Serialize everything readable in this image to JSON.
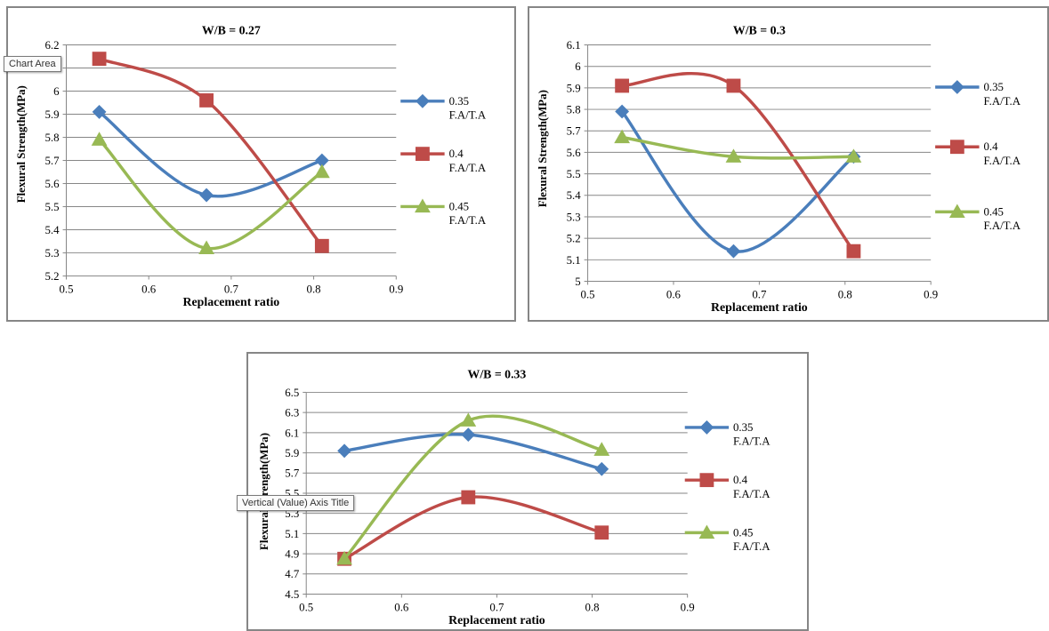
{
  "tooltips": {
    "chart_area": "Chart Area",
    "vertical_axis_title": "Vertical (Value) Axis Title"
  },
  "colors": {
    "series_035": "#4a7ebb",
    "series_04": "#be4b48",
    "series_045": "#98b954",
    "gridline": "#868686",
    "border": "#868686"
  },
  "chart_data": [
    {
      "type": "line",
      "title": "W/B = 0.27",
      "xlabel": "Replacement ratio",
      "ylabel": "Flexural Strength(MPa)",
      "xlim": [
        0.5,
        0.9
      ],
      "xticks": [
        0.5,
        0.6,
        0.7,
        0.8,
        0.9
      ],
      "ylim": [
        5.2,
        6.2
      ],
      "yticks": [
        5.2,
        5.3,
        5.4,
        5.5,
        5.6,
        5.7,
        5.8,
        5.9,
        6,
        6.1,
        6.2
      ],
      "ytick_labels": [
        "5.2",
        "5.3",
        "5.4",
        "5.5",
        "5.6",
        "5.7",
        "5.8",
        "5.9",
        "6",
        "6.1",
        "6.2"
      ],
      "grid": true,
      "legend": "right",
      "x": [
        0.54,
        0.67,
        0.81
      ],
      "series": [
        {
          "name": "0.35 F.A/T.A",
          "label_lines": [
            "0.35",
            "F.A/T.A"
          ],
          "marker": "diamond",
          "color": "#4a7ebb",
          "values": [
            5.91,
            5.55,
            5.7
          ]
        },
        {
          "name": "0.4 F.A/T.A",
          "label_lines": [
            "0.4",
            "F.A/T.A"
          ],
          "marker": "square",
          "color": "#be4b48",
          "values": [
            6.14,
            5.96,
            5.33
          ]
        },
        {
          "name": "0.45 F.A/T.A",
          "label_lines": [
            "0.45",
            "F.A/T.A"
          ],
          "marker": "triangle",
          "color": "#98b954",
          "values": [
            5.79,
            5.32,
            5.65
          ]
        }
      ]
    },
    {
      "type": "line",
      "title": "W/B = 0.3",
      "xlabel": "Replacement ratio",
      "ylabel": "Flexural Strength(MPa)",
      "xlim": [
        0.5,
        0.9
      ],
      "xticks": [
        0.5,
        0.6,
        0.7,
        0.8,
        0.9
      ],
      "ylim": [
        5,
        6.1
      ],
      "yticks": [
        5,
        5.1,
        5.2,
        5.3,
        5.4,
        5.5,
        5.6,
        5.7,
        5.8,
        5.9,
        6,
        6.1
      ],
      "ytick_labels": [
        "5",
        "5.1",
        "5.2",
        "5.3",
        "5.4",
        "5.5",
        "5.6",
        "5.7",
        "5.8",
        "5.9",
        "6",
        "6.1"
      ],
      "grid": true,
      "legend": "right",
      "x": [
        0.54,
        0.67,
        0.81
      ],
      "series": [
        {
          "name": "0.35 F.A/T.A",
          "label_lines": [
            "0.35",
            "F.A/T.A"
          ],
          "marker": "diamond",
          "color": "#4a7ebb",
          "values": [
            5.79,
            5.14,
            5.58
          ]
        },
        {
          "name": "0.4 F.A/T.A",
          "label_lines": [
            "0.4",
            "F.A/T.A"
          ],
          "marker": "square",
          "color": "#be4b48",
          "values": [
            5.91,
            5.91,
            5.14
          ]
        },
        {
          "name": "0.45 F.A/T.A",
          "label_lines": [
            "0.45",
            "F.A/T.A"
          ],
          "marker": "triangle",
          "color": "#98b954",
          "values": [
            5.67,
            5.58,
            5.58
          ]
        }
      ]
    },
    {
      "type": "line",
      "title": "W/B = 0.33",
      "xlabel": "Replacement ratio",
      "ylabel": "Flexural Strength(MPa)",
      "xlim": [
        0.5,
        0.9
      ],
      "xticks": [
        0.5,
        0.6,
        0.7,
        0.8,
        0.9
      ],
      "ylim": [
        4.5,
        6.5
      ],
      "yticks": [
        4.5,
        4.7,
        4.9,
        5.1,
        5.3,
        5.5,
        5.7,
        5.9,
        6.1,
        6.3,
        6.5
      ],
      "ytick_labels": [
        "4.5",
        "4.7",
        "4.9",
        "5.1",
        "5.3",
        "5.5",
        "5.7",
        "5.9",
        "6.1",
        "6.3",
        "6.5"
      ],
      "grid": true,
      "legend": "right",
      "x": [
        0.54,
        0.67,
        0.81
      ],
      "series": [
        {
          "name": "0.35 F.A/T.A",
          "label_lines": [
            "0.35",
            "F.A/T.A"
          ],
          "marker": "diamond",
          "color": "#4a7ebb",
          "values": [
            5.92,
            6.08,
            5.74
          ]
        },
        {
          "name": "0.4 F.A/T.A",
          "label_lines": [
            "0.4",
            "F.A/T.A"
          ],
          "marker": "square",
          "color": "#be4b48",
          "values": [
            4.85,
            5.46,
            5.11
          ]
        },
        {
          "name": "0.45 F.A/T.A",
          "label_lines": [
            "0.45",
            "F.A/T.A"
          ],
          "marker": "triangle",
          "color": "#98b954",
          "values": [
            4.85,
            6.22,
            5.93
          ]
        }
      ]
    }
  ]
}
